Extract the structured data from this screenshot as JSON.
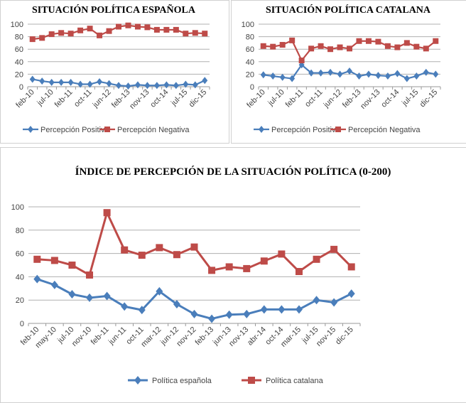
{
  "colors": {
    "series1": "#4a7ebb",
    "series2": "#be4b48",
    "grid": "#b0b0b0"
  },
  "chart_data": [
    {
      "type": "line",
      "title": "SITUACIÓN POLÍTICA ESPAÑOLA",
      "ylim": [
        0,
        100
      ],
      "yticks": [
        0,
        20,
        40,
        60,
        80,
        100
      ],
      "grid": true,
      "legend": "bottom",
      "categories": [
        "feb-10",
        "may-10",
        "jul-10",
        "nov-10",
        "feb-11",
        "jun-11",
        "oct-11",
        "mar-12",
        "jun-12",
        "nov-12",
        "feb-13",
        "jun-13",
        "nov-13",
        "abr-14",
        "oct-14",
        "mar-15",
        "jul-15",
        "nov-15",
        "dic-15"
      ],
      "tick_labels": [
        "feb-10",
        "jul-10",
        "feb-11",
        "oct-11",
        "jun-12",
        "feb-13",
        "nov-13",
        "oct-14",
        "jul-15",
        "dic-15"
      ],
      "series": [
        {
          "name": "Percepción Positiva",
          "marker": "diamond",
          "values": [
            12,
            9,
            7,
            7,
            7,
            4,
            4,
            8,
            5,
            2,
            1,
            3,
            2,
            2,
            3,
            2,
            4,
            3,
            10
          ]
        },
        {
          "name": "Percepción Negativa",
          "marker": "square",
          "values": [
            76,
            78,
            84,
            86,
            85,
            90,
            93,
            82,
            89,
            96,
            98,
            96,
            95,
            91,
            91,
            91,
            85,
            86,
            85
          ]
        }
      ]
    },
    {
      "type": "line",
      "title": "SITUACIÓN POLÍTICA CATALANA",
      "ylim": [
        0,
        100
      ],
      "yticks": [
        0,
        20,
        40,
        60,
        80,
        100
      ],
      "grid": true,
      "legend": "bottom",
      "categories": [
        "feb-10",
        "may-10",
        "jul-10",
        "nov-10",
        "feb-11",
        "jun-11",
        "oct-11",
        "mar-12",
        "jun-12",
        "nov-12",
        "feb-13",
        "jun-13",
        "nov-13",
        "abr-14",
        "oct-14",
        "mar-15",
        "jul-15",
        "nov-15",
        "dic-15"
      ],
      "tick_labels": [
        "feb-10",
        "jul-10",
        "feb-11",
        "oct-11",
        "jun-12",
        "feb-13",
        "nov-13",
        "oct-14",
        "jul-15",
        "dic-15"
      ],
      "series": [
        {
          "name": "Percepción Positiva",
          "marker": "diamond",
          "values": [
            19,
            17,
            15,
            13,
            35,
            22,
            22,
            23,
            20,
            25,
            17,
            20,
            18,
            17,
            21,
            13,
            17,
            23,
            20
          ]
        },
        {
          "name": "Percepción Negativa",
          "marker": "square",
          "values": [
            65,
            64,
            67,
            74,
            42,
            61,
            65,
            60,
            63,
            61,
            73,
            73,
            72,
            65,
            63,
            70,
            64,
            61,
            73
          ]
        }
      ]
    },
    {
      "type": "line",
      "title": "ÍNDICE DE PERCEPCIÓN DE LA SITUACIÓN POLÍTICA (0-200)",
      "ylim": [
        0,
        100
      ],
      "yticks": [
        0,
        20,
        40,
        60,
        80,
        100
      ],
      "grid": true,
      "legend": "bottom",
      "categories": [
        "feb-10",
        "may-10",
        "jul-10",
        "nov-10",
        "feb-11",
        "jun-11",
        "oct-11",
        "mar-12",
        "jun-12",
        "nov-12",
        "feb-13",
        "jun-13",
        "nov-13",
        "abr-14",
        "oct-14",
        "mar-15",
        "jul-15",
        "nov-15",
        "dic-15"
      ],
      "tick_labels": [
        "feb-10",
        "may-10",
        "jul-10",
        "nov-10",
        "feb-11",
        "jun-11",
        "oct-11",
        "mar-12",
        "jun-12",
        "nov-12",
        "feb-13",
        "jun-13",
        "nov-13",
        "abr-14",
        "oct-14",
        "mar-15",
        "jul-15",
        "nov-15",
        "dic-15"
      ],
      "series": [
        {
          "name": "Política española",
          "marker": "diamond",
          "values": [
            38,
            33,
            25,
            22,
            23.5,
            14.5,
            11.5,
            27.5,
            16.5,
            8,
            4,
            7.5,
            8,
            12,
            12,
            12,
            20,
            18,
            25.5
          ]
        },
        {
          "name": "Política catalana",
          "marker": "square",
          "values": [
            55,
            54,
            50,
            41.5,
            95,
            63,
            58.5,
            65,
            59,
            65.5,
            45.5,
            48.5,
            47,
            53.5,
            59.5,
            44.5,
            55,
            63.5,
            48.5
          ]
        }
      ]
    }
  ]
}
